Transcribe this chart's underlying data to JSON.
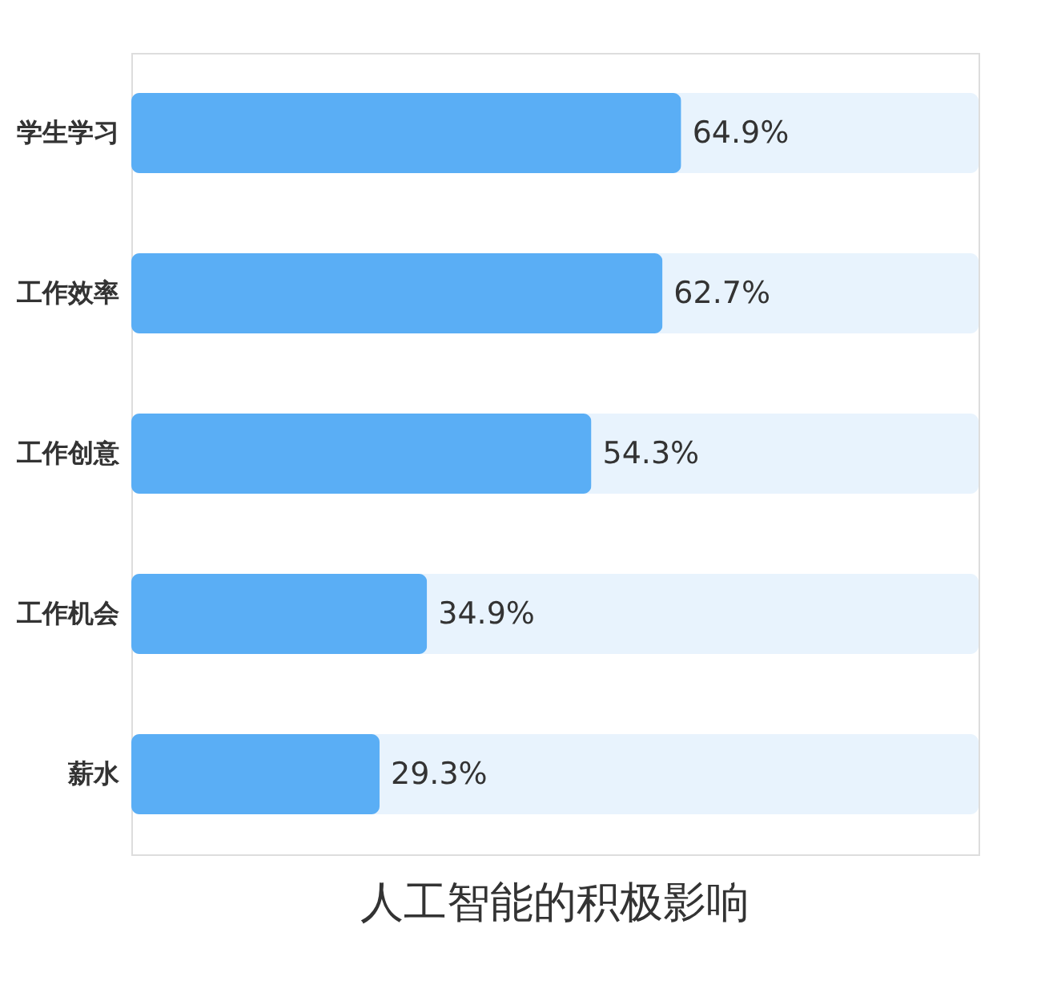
{
  "chart_data": {
    "type": "bar",
    "orientation": "horizontal",
    "title": "人工智能的积极影响",
    "categories": [
      "学生学习",
      "工作效率",
      "工作创意",
      "工作机会",
      "薪水"
    ],
    "values": [
      64.9,
      62.7,
      54.3,
      34.9,
      29.3
    ],
    "value_labels": [
      "64.9%",
      "62.7%",
      "54.3%",
      "34.9%",
      "29.3%"
    ],
    "color": "#5aaef5",
    "xlim": [
      0,
      100
    ],
    "bands": [
      {
        "axis": "x",
        "from": 0,
        "to": 100,
        "color": "#e8f3fd"
      }
    ],
    "tick_labels": "y"
  }
}
